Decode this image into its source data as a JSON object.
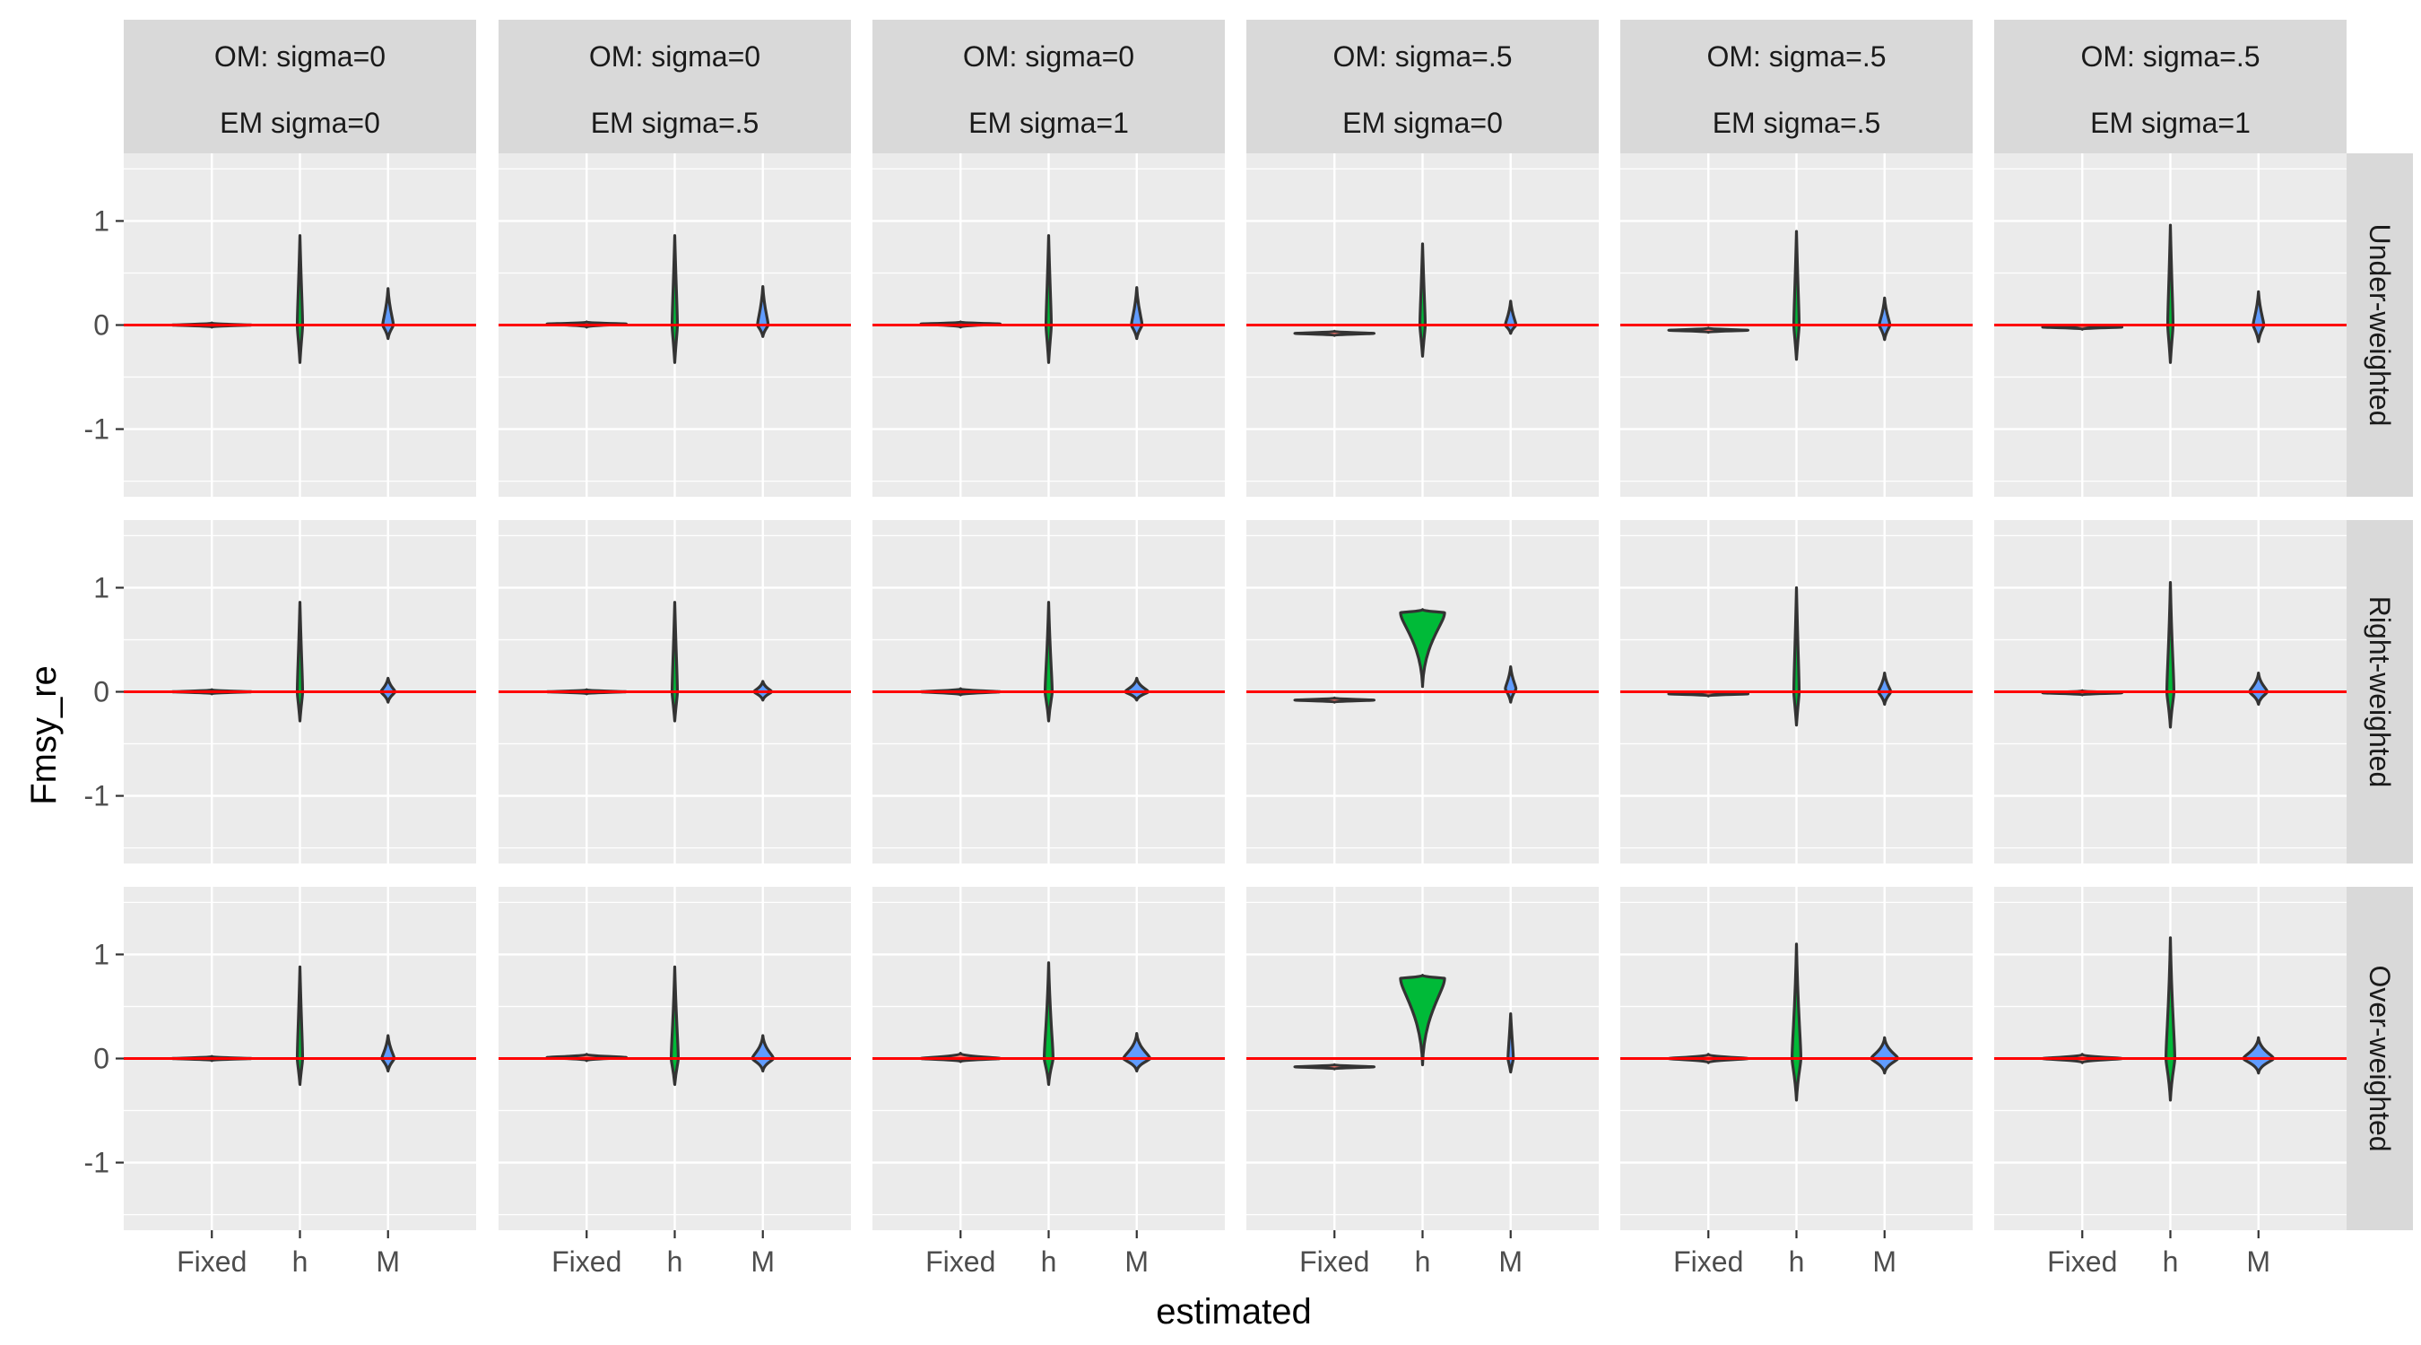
{
  "chart_data": {
    "type": "violin",
    "xlabel": "estimated",
    "ylabel": "Fmsy_re",
    "ylim": [
      -1.65,
      1.65
    ],
    "y_ticks": [
      "1",
      "0",
      "-1"
    ],
    "y_tick_values": [
      1,
      0,
      -1
    ],
    "categories": [
      "Fixed",
      "h",
      "M"
    ],
    "reference_line": {
      "y": 0,
      "color": "#ff0000"
    },
    "grid": true,
    "panel_background": "#ebebeb",
    "strip_background": "#d9d9d9",
    "fill_colors": {
      "Fixed": "#f8766d",
      "h": "#00ba38",
      "M": "#619cff"
    },
    "columns": [
      {
        "label_top": "OM: sigma=0",
        "label_bottom": "EM sigma=0"
      },
      {
        "label_top": "OM: sigma=0",
        "label_bottom": "EM sigma=.5"
      },
      {
        "label_top": "OM: sigma=0",
        "label_bottom": "EM sigma=1"
      },
      {
        "label_top": "OM: sigma=.5",
        "label_bottom": "EM sigma=0"
      },
      {
        "label_top": "OM: sigma=.5",
        "label_bottom": "EM sigma=.5"
      },
      {
        "label_top": "OM: sigma=.5",
        "label_bottom": "EM sigma=1"
      }
    ],
    "rows": [
      {
        "label": "Under-weighted"
      },
      {
        "label": "Right-weighted"
      },
      {
        "label": "Over-weighted"
      }
    ],
    "panels": [
      [
        [
          {
            "center": 0.0,
            "min": -0.02,
            "max": 0.02,
            "width": 0.9
          },
          {
            "center": 0.0,
            "min": -0.36,
            "max": 0.86,
            "width": 0.06
          },
          {
            "center": 0.0,
            "min": -0.13,
            "max": 0.35,
            "width": 0.12
          }
        ],
        [
          {
            "center": 0.01,
            "min": -0.02,
            "max": 0.03,
            "width": 0.9
          },
          {
            "center": 0.0,
            "min": -0.36,
            "max": 0.86,
            "width": 0.06
          },
          {
            "center": 0.0,
            "min": -0.11,
            "max": 0.37,
            "width": 0.12
          }
        ],
        [
          {
            "center": 0.01,
            "min": -0.02,
            "max": 0.03,
            "width": 0.9
          },
          {
            "center": 0.0,
            "min": -0.36,
            "max": 0.86,
            "width": 0.06
          },
          {
            "center": 0.0,
            "min": -0.13,
            "max": 0.36,
            "width": 0.12
          }
        ],
        [
          {
            "center": -0.08,
            "min": -0.1,
            "max": -0.06,
            "width": 0.9
          },
          {
            "center": 0.0,
            "min": -0.3,
            "max": 0.78,
            "width": 0.06
          },
          {
            "center": 0.0,
            "min": -0.08,
            "max": 0.23,
            "width": 0.12
          }
        ],
        [
          {
            "center": -0.05,
            "min": -0.07,
            "max": -0.03,
            "width": 0.9
          },
          {
            "center": 0.0,
            "min": -0.33,
            "max": 0.9,
            "width": 0.06
          },
          {
            "center": 0.0,
            "min": -0.14,
            "max": 0.26,
            "width": 0.12
          }
        ],
        [
          {
            "center": -0.02,
            "min": -0.04,
            "max": 0.0,
            "width": 0.9
          },
          {
            "center": 0.0,
            "min": -0.36,
            "max": 0.96,
            "width": 0.06
          },
          {
            "center": 0.0,
            "min": -0.16,
            "max": 0.32,
            "width": 0.12
          }
        ]
      ],
      [
        [
          {
            "center": 0.0,
            "min": -0.02,
            "max": 0.02,
            "width": 0.9
          },
          {
            "center": 0.0,
            "min": -0.28,
            "max": 0.86,
            "width": 0.06
          },
          {
            "center": 0.0,
            "min": -0.1,
            "max": 0.13,
            "width": 0.16
          }
        ],
        [
          {
            "center": 0.0,
            "min": -0.02,
            "max": 0.02,
            "width": 0.9
          },
          {
            "center": 0.0,
            "min": -0.28,
            "max": 0.86,
            "width": 0.06
          },
          {
            "center": 0.0,
            "min": -0.08,
            "max": 0.1,
            "width": 0.2
          }
        ],
        [
          {
            "center": 0.0,
            "min": -0.03,
            "max": 0.03,
            "width": 0.9
          },
          {
            "center": 0.0,
            "min": -0.28,
            "max": 0.86,
            "width": 0.08
          },
          {
            "center": 0.0,
            "min": -0.08,
            "max": 0.13,
            "width": 0.26
          }
        ],
        [
          {
            "center": -0.08,
            "min": -0.1,
            "max": -0.06,
            "width": 0.9
          },
          {
            "center": 0.76,
            "min": 0.05,
            "max": 0.79,
            "width": 0.5
          },
          {
            "center": 0.03,
            "min": -0.1,
            "max": 0.24,
            "width": 0.12
          }
        ],
        [
          {
            "center": -0.02,
            "min": -0.04,
            "max": 0.0,
            "width": 0.9
          },
          {
            "center": 0.0,
            "min": -0.32,
            "max": 1.0,
            "width": 0.06
          },
          {
            "center": 0.0,
            "min": -0.12,
            "max": 0.18,
            "width": 0.14
          }
        ],
        [
          {
            "center": -0.01,
            "min": -0.03,
            "max": 0.01,
            "width": 0.9
          },
          {
            "center": 0.0,
            "min": -0.34,
            "max": 1.05,
            "width": 0.08
          },
          {
            "center": 0.0,
            "min": -0.12,
            "max": 0.18,
            "width": 0.2
          }
        ]
      ],
      [
        [
          {
            "center": 0.0,
            "min": -0.02,
            "max": 0.02,
            "width": 0.9
          },
          {
            "center": 0.0,
            "min": -0.25,
            "max": 0.88,
            "width": 0.06
          },
          {
            "center": 0.0,
            "min": -0.12,
            "max": 0.22,
            "width": 0.14
          }
        ],
        [
          {
            "center": 0.01,
            "min": -0.02,
            "max": 0.04,
            "width": 0.9
          },
          {
            "center": 0.0,
            "min": -0.25,
            "max": 0.88,
            "width": 0.08
          },
          {
            "center": 0.0,
            "min": -0.12,
            "max": 0.22,
            "width": 0.24
          }
        ],
        [
          {
            "center": 0.0,
            "min": -0.03,
            "max": 0.05,
            "width": 0.9
          },
          {
            "center": 0.0,
            "min": -0.25,
            "max": 0.92,
            "width": 0.1
          },
          {
            "center": 0.0,
            "min": -0.12,
            "max": 0.24,
            "width": 0.3
          }
        ],
        [
          {
            "center": -0.08,
            "min": -0.1,
            "max": -0.06,
            "width": 0.9
          },
          {
            "center": 0.77,
            "min": -0.06,
            "max": 0.8,
            "width": 0.5
          },
          {
            "center": 0.0,
            "min": -0.13,
            "max": 0.43,
            "width": 0.06
          }
        ],
        [
          {
            "center": 0.0,
            "min": -0.04,
            "max": 0.04,
            "width": 0.9
          },
          {
            "center": 0.0,
            "min": -0.4,
            "max": 1.1,
            "width": 0.1
          },
          {
            "center": 0.0,
            "min": -0.14,
            "max": 0.2,
            "width": 0.3
          }
        ],
        [
          {
            "center": 0.0,
            "min": -0.04,
            "max": 0.04,
            "width": 0.9
          },
          {
            "center": 0.0,
            "min": -0.4,
            "max": 1.16,
            "width": 0.1
          },
          {
            "center": 0.0,
            "min": -0.14,
            "max": 0.2,
            "width": 0.34
          }
        ]
      ]
    ]
  }
}
